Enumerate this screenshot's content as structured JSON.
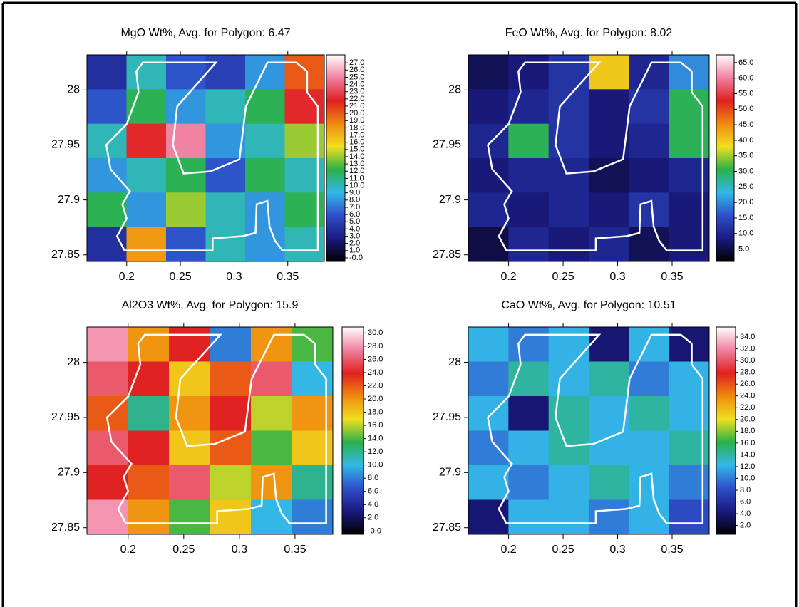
{
  "colormap": [
    "#000000",
    "#1a1a80",
    "#2e4fc8",
    "#33b8e8",
    "#2bb04a",
    "#f0e020",
    "#f08a10",
    "#e02020",
    "#f080a0",
    "#ffffff"
  ],
  "polygon": {
    "color": "#ffffff",
    "x": [
      0.215,
      0.283,
      0.247,
      0.243,
      0.253,
      0.278,
      0.305,
      0.311,
      0.331,
      0.358,
      0.368,
      0.368,
      0.378,
      0.378,
      0.345,
      0.338,
      0.333,
      0.331,
      0.321,
      0.32,
      0.308,
      0.28,
      0.28,
      0.198,
      0.191,
      0.2,
      0.196,
      0.203,
      0.185,
      0.181,
      0.2,
      0.211,
      0.209
    ],
    "y": [
      28.025,
      28.025,
      27.985,
      27.95,
      27.924,
      27.926,
      27.937,
      27.985,
      28.025,
      28.025,
      28.017,
      27.998,
      27.985,
      27.854,
      27.854,
      27.863,
      27.876,
      27.899,
      27.896,
      27.87,
      27.867,
      27.865,
      27.854,
      27.854,
      27.867,
      27.883,
      27.896,
      27.908,
      27.928,
      27.95,
      27.969,
      27.998,
      28.017
    ]
  },
  "chart_data": [
    {
      "type": "heatmap",
      "title": "MgO Wt%, Avg. for Polygon: 6.47",
      "xlim": [
        0.163,
        0.384
      ],
      "ylim": [
        27.844,
        28.032
      ],
      "xticks": [
        0.2,
        0.25,
        0.3,
        0.35
      ],
      "yticks": [
        27.85,
        27.9,
        27.95,
        28
      ],
      "clim": [
        -0.5,
        28.1
      ],
      "cticks": [
        {
          "value": 0,
          "label": "-0.0"
        },
        {
          "value": 1,
          "label": "1.0"
        },
        {
          "value": 2,
          "label": "2.0"
        },
        {
          "value": 3,
          "label": "3.0"
        },
        {
          "value": 4,
          "label": "4.0"
        },
        {
          "value": 5,
          "label": "5.0"
        },
        {
          "value": 6,
          "label": "6.0"
        },
        {
          "value": 7,
          "label": "7.0"
        },
        {
          "value": 8,
          "label": "8.0"
        },
        {
          "value": 9,
          "label": "9.0"
        },
        {
          "value": 10,
          "label": "10.0"
        },
        {
          "value": 11,
          "label": "11.0"
        },
        {
          "value": 12,
          "label": "12.0"
        },
        {
          "value": 13,
          "label": "13.0"
        },
        {
          "value": 14,
          "label": "14.0"
        },
        {
          "value": 15,
          "label": "15.0"
        },
        {
          "value": 16,
          "label": "16.0"
        },
        {
          "value": 17,
          "label": "17.0"
        },
        {
          "value": 18,
          "label": "18.0"
        },
        {
          "value": 19,
          "label": "19.0"
        },
        {
          "value": 20,
          "label": "20.0"
        },
        {
          "value": 21,
          "label": "21.0"
        },
        {
          "value": 22,
          "label": "22.0"
        },
        {
          "value": 23,
          "label": "23.0"
        },
        {
          "value": 24,
          "label": "24.0"
        },
        {
          "value": 25,
          "label": "25.0"
        },
        {
          "value": 26,
          "label": "26.0"
        },
        {
          "value": 27,
          "label": "27.0"
        }
      ],
      "z": [
        [
          4,
          10,
          6,
          5,
          8,
          20
        ],
        [
          6,
          12,
          8,
          10,
          12,
          22
        ],
        [
          10,
          22,
          25,
          8,
          10,
          14
        ],
        [
          8,
          10,
          12,
          6,
          12,
          10
        ],
        [
          12,
          8,
          14,
          10,
          8,
          12
        ],
        [
          4,
          18,
          6,
          10,
          8,
          10
        ]
      ]
    },
    {
      "type": "heatmap",
      "title": "FeO Wt%, Avg. for Polygon: 8.02",
      "xlim": [
        0.163,
        0.384
      ],
      "ylim": [
        27.844,
        28.032
      ],
      "xticks": [
        0.2,
        0.25,
        0.3,
        0.35
      ],
      "yticks": [
        27.85,
        27.9,
        27.95,
        28
      ],
      "clim": [
        1,
        67.5
      ],
      "cticks": [
        {
          "value": 5,
          "label": "5.0"
        },
        {
          "value": 10,
          "label": "10.0"
        },
        {
          "value": 15,
          "label": "15.0"
        },
        {
          "value": 20,
          "label": "20.0"
        },
        {
          "value": 25,
          "label": "25.0"
        },
        {
          "value": 30,
          "label": "30.0"
        },
        {
          "value": 35,
          "label": "35.0"
        },
        {
          "value": 40,
          "label": "40.0"
        },
        {
          "value": 45,
          "label": "45.0"
        },
        {
          "value": 50,
          "label": "50.0"
        },
        {
          "value": 55,
          "label": "55.0"
        },
        {
          "value": 60,
          "label": "60.0"
        },
        {
          "value": 65,
          "label": "65.0"
        }
      ],
      "z": [
        [
          6,
          8,
          12,
          40,
          10,
          20
        ],
        [
          8,
          10,
          12,
          8,
          12,
          30
        ],
        [
          10,
          30,
          12,
          8,
          10,
          30
        ],
        [
          8,
          10,
          10,
          6,
          8,
          10
        ],
        [
          10,
          8,
          10,
          8,
          12,
          8
        ],
        [
          5,
          10,
          8,
          10,
          6,
          8
        ]
      ]
    },
    {
      "type": "heatmap",
      "title": "Al2O3 Wt%, Avg. for Polygon: 15.9",
      "xlim": [
        0.163,
        0.384
      ],
      "ylim": [
        27.844,
        28.032
      ],
      "xticks": [
        0.2,
        0.25,
        0.3,
        0.35
      ],
      "yticks": [
        27.85,
        27.9,
        27.95,
        28
      ],
      "clim": [
        -0.5,
        30.9
      ],
      "cticks": [
        {
          "value": 0,
          "label": "-0.0"
        },
        {
          "value": 2,
          "label": "2.0"
        },
        {
          "value": 4,
          "label": "4.0"
        },
        {
          "value": 6,
          "label": "6.0"
        },
        {
          "value": 8,
          "label": "8.0"
        },
        {
          "value": 10,
          "label": "10.0"
        },
        {
          "value": 12,
          "label": "12.0"
        },
        {
          "value": 14,
          "label": "14.0"
        },
        {
          "value": 16,
          "label": "16.0"
        },
        {
          "value": 18,
          "label": "18.0"
        },
        {
          "value": 20,
          "label": "20.0"
        },
        {
          "value": 22,
          "label": "22.0"
        },
        {
          "value": 24,
          "label": "24.0"
        },
        {
          "value": 26,
          "label": "26.0"
        },
        {
          "value": 28,
          "label": "28.0"
        },
        {
          "value": 30,
          "label": "30.0"
        }
      ],
      "z": [
        [
          28,
          20,
          24,
          8,
          20,
          14
        ],
        [
          26,
          24,
          18,
          22,
          26,
          10
        ],
        [
          22,
          12,
          20,
          24,
          16,
          20
        ],
        [
          26,
          24,
          18,
          22,
          14,
          18
        ],
        [
          24,
          22,
          26,
          16,
          20,
          12
        ],
        [
          28,
          20,
          14,
          18,
          10,
          8
        ]
      ]
    },
    {
      "type": "heatmap",
      "title": "CaO Wt%, Avg. for Polygon: 10.51",
      "xlim": [
        0.163,
        0.384
      ],
      "ylim": [
        27.844,
        28.032
      ],
      "xticks": [
        0.2,
        0.25,
        0.3,
        0.35
      ],
      "yticks": [
        27.85,
        27.9,
        27.95,
        28
      ],
      "clim": [
        0.5,
        35.7
      ],
      "cticks": [
        {
          "value": 2,
          "label": "2.0"
        },
        {
          "value": 4,
          "label": "4.0"
        },
        {
          "value": 6,
          "label": "6.0"
        },
        {
          "value": 8,
          "label": "8.0"
        },
        {
          "value": 10,
          "label": "10.0"
        },
        {
          "value": 12,
          "label": "12.0"
        },
        {
          "value": 14,
          "label": "14.0"
        },
        {
          "value": 16,
          "label": "16.0"
        },
        {
          "value": 18,
          "label": "18.0"
        },
        {
          "value": 20,
          "label": "20.0"
        },
        {
          "value": 22,
          "label": "22.0"
        },
        {
          "value": 24,
          "label": "24.0"
        },
        {
          "value": 26,
          "label": "26.0"
        },
        {
          "value": 28,
          "label": "28.0"
        },
        {
          "value": 30,
          "label": "30.0"
        },
        {
          "value": 32,
          "label": "32.0"
        },
        {
          "value": 34,
          "label": "34.0"
        }
      ],
      "z": [
        [
          12,
          10,
          12,
          4,
          12,
          4
        ],
        [
          10,
          14,
          12,
          14,
          10,
          12
        ],
        [
          12,
          4,
          14,
          12,
          14,
          12
        ],
        [
          10,
          12,
          14,
          12,
          12,
          14
        ],
        [
          12,
          10,
          12,
          14,
          12,
          10
        ],
        [
          4,
          12,
          12,
          10,
          12,
          8
        ]
      ]
    }
  ]
}
